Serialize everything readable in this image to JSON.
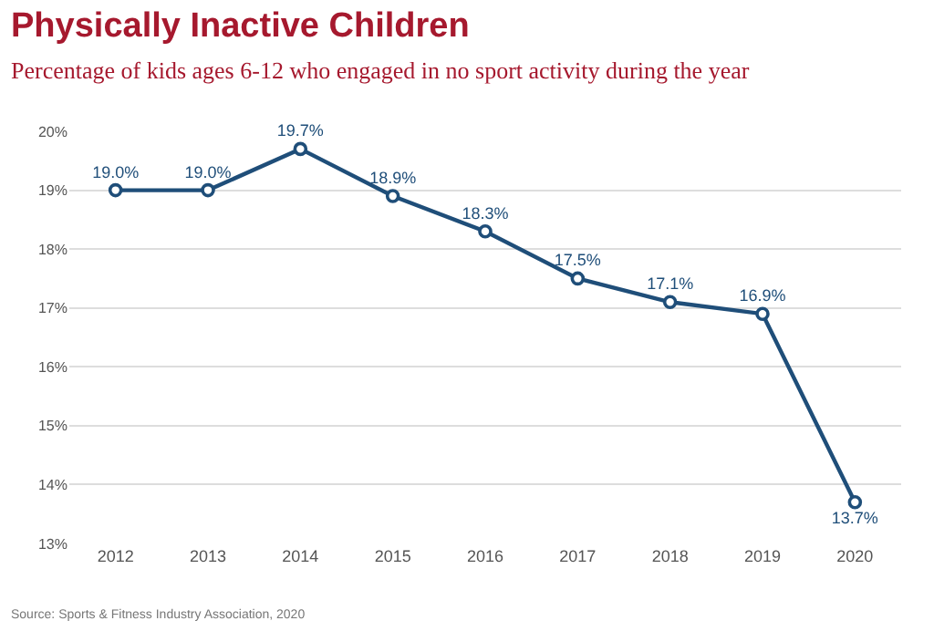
{
  "chart_data": {
    "type": "line",
    "title": "Physically Inactive Children",
    "subtitle": "Percentage of kids ages 6-12 who engaged in no sport activity during the year",
    "categories": [
      "2012",
      "2013",
      "2014",
      "2015",
      "2016",
      "2017",
      "2018",
      "2019",
      "2020"
    ],
    "series": [
      {
        "color": "#1f4e79",
        "values": [
          19.0,
          19.0,
          19.7,
          18.9,
          18.3,
          17.5,
          17.1,
          16.9,
          13.7
        ],
        "value_labels": [
          "19.0%",
          "19.0%",
          "19.7%",
          "18.9%",
          "18.3%",
          "17.5%",
          "17.1%",
          "16.9%",
          "13.7%"
        ]
      }
    ],
    "ylim": [
      13,
      20
    ],
    "yticks": [
      {
        "value": 13,
        "label": "13%"
      },
      {
        "value": 14,
        "label": "14%"
      },
      {
        "value": 15,
        "label": "15%"
      },
      {
        "value": 16,
        "label": "16%"
      },
      {
        "value": 17,
        "label": "17%"
      },
      {
        "value": 18,
        "label": "18%"
      },
      {
        "value": 19,
        "label": "19%"
      },
      {
        "value": 20,
        "label": "20%"
      }
    ],
    "grid": "y",
    "marker": "circle",
    "line_style": "solid",
    "annotations": [
      "Source: Sports & Fitness Industry Association, 2020"
    ]
  }
}
